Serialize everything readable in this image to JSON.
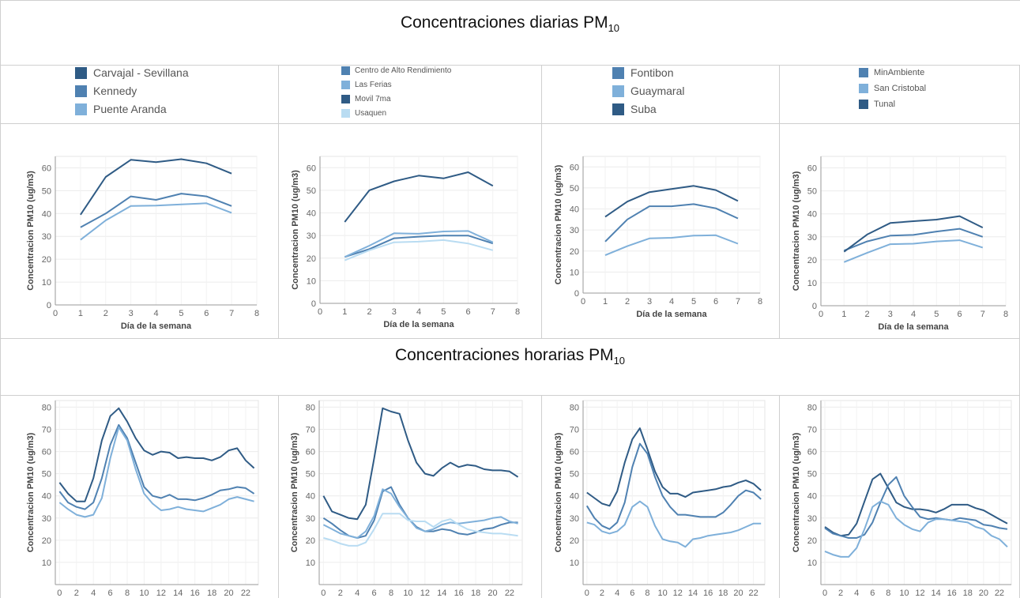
{
  "sections": {
    "daily_title": "Concentraciones diarias PM",
    "daily_title_sub": "10",
    "hourly_title": "Concentraciones horarias PM",
    "hourly_title_sub": "10"
  },
  "legends": [
    {
      "items": [
        {
          "label": "Carvajal - Sevillana",
          "color": "#2f5b85"
        },
        {
          "label": "Kennedy",
          "color": "#4f81b1"
        },
        {
          "label": "Puente Aranda",
          "color": "#7fb0da"
        }
      ]
    },
    {
      "items": [
        {
          "label": "Centro de Alto Rendimiento",
          "color": "#4f81b1"
        },
        {
          "label": "Las Ferias",
          "color": "#7fb0da"
        },
        {
          "label": "Movil 7ma",
          "color": "#2f5b85"
        },
        {
          "label": "Usaquen",
          "color": "#b9dcf2"
        }
      ]
    },
    {
      "items": [
        {
          "label": "Fontibon",
          "color": "#4f81b1"
        },
        {
          "label": "Guaymaral",
          "color": "#7fb0da"
        },
        {
          "label": "Suba",
          "color": "#2f5b85"
        }
      ]
    },
    {
      "items": [
        {
          "label": "MinAmbiente",
          "color": "#4f81b1"
        },
        {
          "label": "San Cristobal",
          "color": "#7fb0da"
        },
        {
          "label": "Tunal",
          "color": "#2f5b85"
        }
      ]
    }
  ],
  "chart_data": [
    {
      "type": "line",
      "panel": "daily-1",
      "xlabel": "Día de la semana",
      "ylabel": "Concentracion PM10 (ug/m3)",
      "xlim": [
        0,
        8
      ],
      "ylim": [
        0,
        65
      ],
      "xticks": [
        0,
        1,
        2,
        3,
        4,
        5,
        6,
        7,
        8
      ],
      "yticks": [
        0,
        10,
        20,
        30,
        40,
        50,
        60
      ],
      "x": [
        1,
        2,
        3,
        4,
        5,
        6,
        7
      ],
      "series": [
        {
          "name": "Carvajal - Sevillana",
          "color": "#2f5b85",
          "values": [
            39.5,
            56,
            63.5,
            62.5,
            63.8,
            62,
            57.5
          ]
        },
        {
          "name": "Kennedy",
          "color": "#4f81b1",
          "values": [
            34,
            40,
            47.5,
            46,
            48.7,
            47.5,
            43.3
          ]
        },
        {
          "name": "Puente Aranda",
          "color": "#7fb0da",
          "values": [
            28.5,
            37,
            43.3,
            43.5,
            44,
            44.5,
            40.3
          ]
        }
      ]
    },
    {
      "type": "line",
      "panel": "daily-2",
      "xlabel": "Día de la semana",
      "ylabel": "Concentracion PM10 (ug/m3)",
      "xlim": [
        0,
        8
      ],
      "ylim": [
        0,
        65
      ],
      "xticks": [
        0,
        1,
        2,
        3,
        4,
        5,
        6,
        7,
        8
      ],
      "yticks": [
        0,
        10,
        20,
        30,
        40,
        50,
        60
      ],
      "x": [
        1,
        2,
        3,
        4,
        5,
        6,
        7
      ],
      "series": [
        {
          "name": "Centro de Alto Rendimiento",
          "color": "#4f81b1",
          "values": [
            20.5,
            24,
            28.8,
            29.5,
            30,
            30,
            26.5
          ]
        },
        {
          "name": "Las Ferias",
          "color": "#7fb0da",
          "values": [
            20.5,
            25.5,
            31,
            30.8,
            31.8,
            32,
            27
          ]
        },
        {
          "name": "Movil 7ma",
          "color": "#2f5b85",
          "values": [
            36,
            50,
            54,
            56.5,
            55.3,
            58,
            52
          ]
        },
        {
          "name": "Usaquen",
          "color": "#b9dcf2",
          "values": [
            19,
            23.5,
            27,
            27.3,
            28,
            26.5,
            23.5
          ]
        }
      ]
    },
    {
      "type": "line",
      "panel": "daily-3",
      "xlabel": "Día de la semana",
      "ylabel": "Concentracion PM10 (ug/m3)",
      "xlim": [
        0,
        8
      ],
      "ylim": [
        0,
        65
      ],
      "xticks": [
        0,
        1,
        2,
        3,
        4,
        5,
        6,
        7,
        8
      ],
      "yticks": [
        0,
        10,
        20,
        30,
        40,
        50,
        60
      ],
      "x": [
        1,
        2,
        3,
        4,
        5,
        6,
        7
      ],
      "series": [
        {
          "name": "Fontibon",
          "color": "#4f81b1",
          "values": [
            24.5,
            35,
            41.3,
            41.3,
            42.3,
            40.3,
            35.5
          ]
        },
        {
          "name": "Guaymaral",
          "color": "#7fb0da",
          "values": [
            18,
            22.3,
            26,
            26.3,
            27.3,
            27.5,
            23.5
          ]
        },
        {
          "name": "Suba",
          "color": "#2f5b85",
          "values": [
            36.3,
            43.5,
            48,
            49.5,
            51,
            49,
            43.8
          ]
        }
      ]
    },
    {
      "type": "line",
      "panel": "daily-4",
      "xlabel": "Día de la semana",
      "ylabel": "Concentracion PM10 (ug/m3)",
      "xlim": [
        0,
        8
      ],
      "ylim": [
        0,
        65
      ],
      "xticks": [
        0,
        1,
        2,
        3,
        4,
        5,
        6,
        7,
        8
      ],
      "yticks": [
        0,
        10,
        20,
        30,
        40,
        50,
        60
      ],
      "x": [
        1,
        2,
        3,
        4,
        5,
        6,
        7
      ],
      "series": [
        {
          "name": "MinAmbiente",
          "color": "#4f81b1",
          "values": [
            24,
            28,
            30.5,
            30.8,
            32.3,
            33.5,
            30
          ]
        },
        {
          "name": "San Cristobal",
          "color": "#7fb0da",
          "values": [
            19,
            23,
            26.8,
            27,
            28,
            28.5,
            25.3
          ]
        },
        {
          "name": "Tunal",
          "color": "#2f5b85",
          "values": [
            23.5,
            31,
            36,
            36.8,
            37.5,
            39,
            34
          ]
        }
      ]
    },
    {
      "type": "line",
      "panel": "hourly-1",
      "xlabel": "Hora",
      "ylabel": "Concentracion PM10 (ug/m3)",
      "xlim": [
        -0.5,
        23.5
      ],
      "ylim": [
        0,
        83
      ],
      "xticks": [
        0,
        2,
        4,
        6,
        8,
        10,
        12,
        14,
        16,
        18,
        20,
        22
      ],
      "yticks": [
        10,
        20,
        30,
        40,
        50,
        60,
        70,
        80
      ],
      "x": [
        0,
        1,
        2,
        3,
        4,
        5,
        6,
        7,
        8,
        9,
        10,
        11,
        12,
        13,
        14,
        15,
        16,
        17,
        18,
        19,
        20,
        21,
        22,
        23
      ],
      "series": [
        {
          "name": "Carvajal - Sevillana",
          "color": "#2f5b85",
          "values": [
            46,
            41,
            37.5,
            37.5,
            48,
            65,
            76,
            79.5,
            73.5,
            66,
            60.5,
            58.5,
            60,
            59.5,
            57,
            57.5,
            57,
            57,
            56,
            57.5,
            60.5,
            61.5,
            56,
            52.5
          ]
        },
        {
          "name": "Kennedy",
          "color": "#4f81b1",
          "values": [
            42,
            37,
            35,
            34,
            37,
            48,
            63,
            72,
            66,
            55,
            44,
            40,
            39,
            40.5,
            38.5,
            38.5,
            38,
            39,
            40.5,
            42.5,
            43,
            44,
            43.5,
            41
          ]
        },
        {
          "name": "Puente Aranda",
          "color": "#7fb0da",
          "values": [
            37,
            34,
            31.5,
            30.5,
            31.5,
            39,
            57,
            71,
            65,
            52,
            41,
            36.5,
            33.5,
            34,
            35,
            34,
            33.5,
            33,
            34.5,
            36,
            38.5,
            39.5,
            38.5,
            37.5
          ]
        }
      ]
    },
    {
      "type": "line",
      "panel": "hourly-2",
      "xlabel": "Hora",
      "ylabel": "Concentracion PM10 (ug/m3)",
      "xlim": [
        -0.5,
        23.5
      ],
      "ylim": [
        0,
        83
      ],
      "xticks": [
        0,
        2,
        4,
        6,
        8,
        10,
        12,
        14,
        16,
        18,
        20,
        22
      ],
      "yticks": [
        10,
        20,
        30,
        40,
        50,
        60,
        70,
        80
      ],
      "x": [
        0,
        1,
        2,
        3,
        4,
        5,
        6,
        7,
        8,
        9,
        10,
        11,
        12,
        13,
        14,
        15,
        16,
        17,
        18,
        19,
        20,
        21,
        22,
        23
      ],
      "series": [
        {
          "name": "Movil 7ma",
          "color": "#2f5b85",
          "values": [
            40,
            33,
            31.5,
            30,
            29.5,
            36,
            57,
            79.5,
            78,
            77,
            65,
            55,
            50,
            49,
            52.5,
            55,
            53,
            54,
            53.5,
            52,
            51.5,
            51.5,
            51,
            48.5
          ]
        },
        {
          "name": "Centro de Alto Rendimiento",
          "color": "#4f81b1",
          "values": [
            30,
            27.5,
            24.5,
            22,
            21,
            22,
            29,
            42,
            44,
            36,
            30,
            26,
            24,
            24,
            25,
            24.5,
            23,
            22.5,
            23.5,
            25,
            25.5,
            27,
            28,
            28
          ]
        },
        {
          "name": "Las Ferias",
          "color": "#7fb0da",
          "values": [
            27,
            25,
            23,
            22,
            21,
            24,
            31,
            43,
            41,
            35,
            30,
            25.5,
            24,
            25,
            27,
            28,
            27.5,
            28,
            28.5,
            29,
            30,
            30.5,
            28.5,
            27.5
          ]
        },
        {
          "name": "Usaquen",
          "color": "#b9dcf2",
          "values": [
            21,
            20,
            18.5,
            17.5,
            17.5,
            19,
            25,
            32,
            32,
            32,
            29,
            28.5,
            28.5,
            26,
            28.5,
            29.5,
            27,
            25,
            24,
            23.5,
            23,
            23,
            22.5,
            22
          ]
        }
      ]
    },
    {
      "type": "line",
      "panel": "hourly-3",
      "xlabel": "Hora",
      "ylabel": "Concentracion PM10 (ug/m3)",
      "xlim": [
        -0.5,
        23.5
      ],
      "ylim": [
        0,
        83
      ],
      "xticks": [
        0,
        2,
        4,
        6,
        8,
        10,
        12,
        14,
        16,
        18,
        20,
        22
      ],
      "yticks": [
        10,
        20,
        30,
        40,
        50,
        60,
        70,
        80
      ],
      "x": [
        0,
        1,
        2,
        3,
        4,
        5,
        6,
        7,
        8,
        9,
        10,
        11,
        12,
        13,
        14,
        15,
        16,
        17,
        18,
        19,
        20,
        21,
        22,
        23
      ],
      "series": [
        {
          "name": "Suba",
          "color": "#2f5b85",
          "values": [
            41.5,
            39,
            36.5,
            35.5,
            42,
            55,
            65.5,
            70.5,
            61,
            51,
            44,
            41,
            41,
            39.5,
            41.5,
            42,
            42.5,
            43,
            44,
            44.5,
            46,
            47,
            45.5,
            42.5
          ]
        },
        {
          "name": "Fontibon",
          "color": "#4f81b1",
          "values": [
            35.5,
            30,
            26.5,
            25,
            28,
            37,
            53,
            63.5,
            59,
            48.5,
            40,
            35,
            31.5,
            31.5,
            31,
            30.5,
            30.5,
            30.5,
            32.5,
            36,
            40,
            42.5,
            41.5,
            38.5
          ]
        },
        {
          "name": "Guaymaral",
          "color": "#7fb0da",
          "values": [
            28,
            27,
            24,
            23,
            24,
            27,
            35,
            37.5,
            35,
            26.5,
            20.5,
            19.5,
            19,
            17,
            20.5,
            21,
            22,
            22.5,
            23,
            23.5,
            24.5,
            26,
            27.5,
            27.5
          ]
        }
      ]
    },
    {
      "type": "line",
      "panel": "hourly-4",
      "xlabel": "Hora",
      "ylabel": "Concentracion PM10 (ug/m3)",
      "xlim": [
        -0.5,
        23.5
      ],
      "ylim": [
        0,
        83
      ],
      "xticks": [
        0,
        2,
        4,
        6,
        8,
        10,
        12,
        14,
        16,
        18,
        20,
        22
      ],
      "yticks": [
        10,
        20,
        30,
        40,
        50,
        60,
        70,
        80
      ],
      "x": [
        0,
        1,
        2,
        3,
        4,
        5,
        6,
        7,
        8,
        9,
        10,
        11,
        12,
        13,
        14,
        15,
        16,
        17,
        18,
        19,
        20,
        21,
        22,
        23
      ],
      "series": [
        {
          "name": "Tunal",
          "color": "#2f5b85",
          "values": [
            26,
            23.5,
            22,
            22.5,
            27.5,
            37.5,
            47.5,
            50,
            43.5,
            37,
            35,
            34,
            34,
            33.5,
            32.5,
            34,
            36,
            36,
            36,
            34.5,
            33.5,
            31.5,
            29.5,
            27.5
          ]
        },
        {
          "name": "MinAmbiente",
          "color": "#4f81b1",
          "values": [
            25.5,
            23,
            22,
            21,
            21,
            22.5,
            28,
            37,
            45,
            48.5,
            40,
            35,
            30.5,
            29.5,
            30,
            29.5,
            29,
            30,
            29.5,
            29,
            27,
            26.5,
            25.5,
            25
          ]
        },
        {
          "name": "San Cristobal",
          "color": "#7fb0da",
          "values": [
            15,
            13.5,
            12.5,
            12.5,
            16.5,
            25,
            35,
            37.5,
            36,
            30,
            27,
            25,
            24,
            28,
            29.5,
            29.5,
            29,
            28.5,
            28,
            26,
            25,
            22,
            20.5,
            17
          ]
        }
      ]
    }
  ]
}
